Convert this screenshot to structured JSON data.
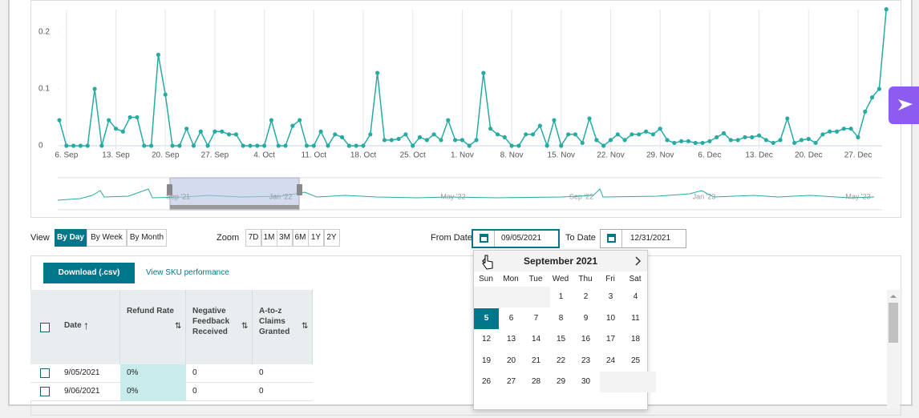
{
  "chart_data": {
    "type": "line",
    "categories": [
      null,
      "6. Sep",
      null,
      null,
      null,
      null,
      null,
      null,
      "13. Sep",
      null,
      null,
      null,
      null,
      null,
      null,
      "20. Sep",
      null,
      null,
      null,
      null,
      null,
      null,
      "27. Sep",
      null,
      null,
      null,
      null,
      null,
      null,
      "4. Oct",
      null,
      null,
      null,
      null,
      null,
      null,
      "11. Oct",
      null,
      null,
      null,
      null,
      null,
      null,
      "18. Oct",
      null,
      null,
      null,
      null,
      null,
      null,
      "25. Oct",
      null,
      null,
      null,
      null,
      null,
      null,
      "1. Nov",
      null,
      null,
      null,
      null,
      null,
      null,
      "8. Nov",
      null,
      null,
      null,
      null,
      null,
      null,
      "15. Nov",
      null,
      null,
      null,
      null,
      null,
      null,
      "22. Nov",
      null,
      null,
      null,
      null,
      null,
      null,
      "29. Nov",
      null,
      null,
      null,
      null,
      null,
      null,
      "6. Dec",
      null,
      null,
      null,
      null,
      null,
      null,
      "13. Dec",
      null,
      null,
      null,
      null,
      null,
      null,
      "20. Dec",
      null,
      null,
      null,
      null,
      null,
      null,
      "27. Dec",
      null,
      null,
      null,
      null
    ],
    "values": [
      0.045,
      0,
      0,
      0,
      0,
      0.1,
      0,
      0.045,
      0.03,
      0.025,
      0.05,
      0.05,
      0,
      0,
      0.16,
      0.09,
      0,
      0,
      0.03,
      0,
      0.025,
      0,
      0.025,
      0.025,
      0.02,
      0.02,
      0,
      0,
      0,
      0,
      0.045,
      0,
      0,
      0.035,
      0.045,
      0,
      0,
      0.025,
      0,
      0.02,
      0.015,
      0,
      0,
      0,
      0.02,
      0.128,
      0.01,
      0.01,
      0.012,
      0.02,
      0,
      0.015,
      0.01,
      0.02,
      0.01,
      0.045,
      0.01,
      0.01,
      0,
      0.01,
      0.128,
      0.03,
      0.02,
      0.015,
      0,
      0,
      0.02,
      0.02,
      0.035,
      0,
      0.045,
      0,
      0.02,
      0.02,
      0.005,
      0.048,
      0.01,
      0,
      0.01,
      0.02,
      0.01,
      0.02,
      0.02,
      0.025,
      0.02,
      0.03,
      0.01,
      0.005,
      0.008,
      0.008,
      0.005,
      0.005,
      0.008,
      0.015,
      0.022,
      0.01,
      0.01,
      0.015,
      0.015,
      0.018,
      0.01,
      0.005,
      0.01,
      0.048,
      0.005,
      0.01,
      0.012,
      0.005,
      0.02,
      0.025,
      0.025,
      0.03,
      0.03,
      0.015,
      0.06,
      0.085,
      0.1,
      0.24
    ],
    "color": "#26aba3",
    "markers": true,
    "xgrid": true,
    "ylim": [
      0,
      0.24
    ],
    "yticks": [
      0,
      0.1,
      0.2
    ]
  },
  "navigator": {
    "labels": [
      "Sep '21",
      "Jan '22",
      "May '22",
      "Sep '22",
      "Jan '23",
      "May '23"
    ]
  },
  "controls": {
    "view_label": "View",
    "view_options": [
      "By Day",
      "By Week",
      "By Month"
    ],
    "zoom_label": "Zoom",
    "zoom_options": [
      "7D",
      "1M",
      "3M",
      "6M",
      "1Y",
      "2Y"
    ],
    "from_label": "From Date",
    "from_value": "09/05/2021",
    "to_label": "To Date",
    "to_value": "12/31/2021"
  },
  "actions": {
    "download": "Download (.csv)",
    "sku_link": "View SKU performance"
  },
  "table": {
    "headers": [
      "Date",
      "Refund Rate",
      "Negative Feedback Received",
      "A-to-z Claims Granted"
    ],
    "rows": [
      [
        "9/05/2021",
        "0%",
        "0",
        "0"
      ],
      [
        "9/06/2021",
        "0%",
        "0",
        "0"
      ]
    ]
  },
  "calendar": {
    "title": "September 2021",
    "weekdays": [
      "Sun",
      "Mon",
      "Tue",
      "Wed",
      "Thu",
      "Fri",
      "Sat"
    ],
    "days": [
      1,
      2,
      3,
      4,
      5,
      6,
      7,
      8,
      9,
      10,
      11,
      12,
      13,
      14,
      15,
      16,
      17,
      18,
      19,
      20,
      21,
      22,
      23,
      24,
      25,
      26,
      27,
      28,
      29,
      30
    ]
  }
}
